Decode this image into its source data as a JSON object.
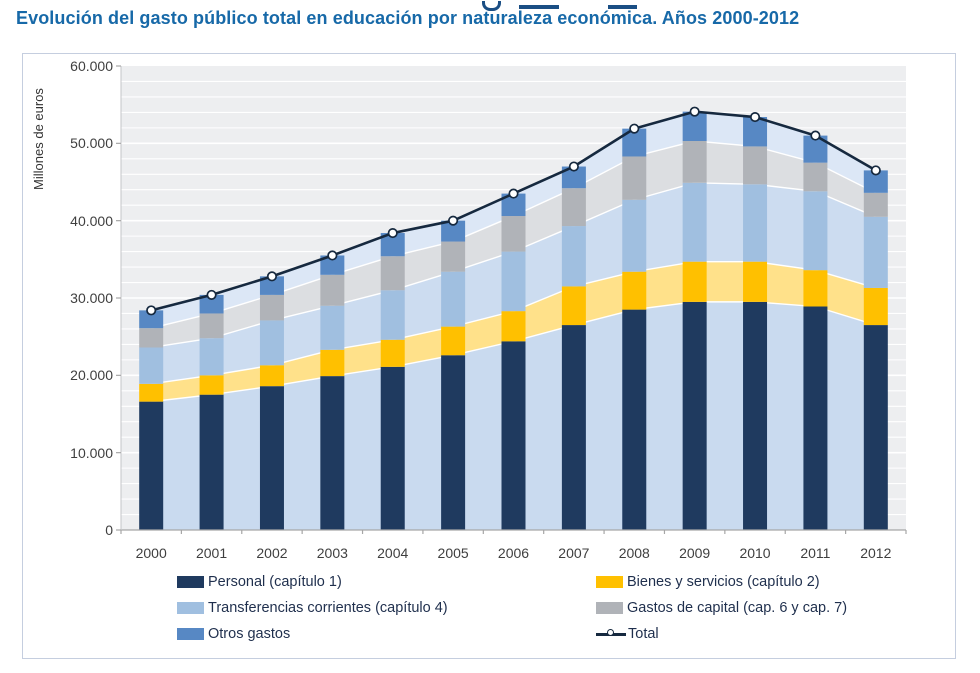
{
  "page": {
    "title": "Evolución del gasto público total en educación por naturaleza económica. Años 2000-2012",
    "title_color": "#1769A8"
  },
  "chart_data": {
    "type": "bar",
    "subtype": "stacked-columns-with-area-bands-and-total-line",
    "title": "Evolución del gasto público total en educación por naturaleza económica. Años 2000-2012",
    "xlabel": "",
    "ylabel": "Millones de euros",
    "ylim": [
      0,
      60000
    ],
    "y_tick_step": 10000,
    "y_minor_step": 2000,
    "y_tick_labels": [
      "0",
      "10.000",
      "20.000",
      "30.000",
      "40.000",
      "50.000",
      "60.000"
    ],
    "grid": "horizontal-white-on-gray",
    "legend_position": "bottom-two-columns",
    "categories": [
      "2000",
      "2001",
      "2002",
      "2003",
      "2004",
      "2005",
      "2006",
      "2007",
      "2008",
      "2009",
      "2010",
      "2011",
      "2012"
    ],
    "series": [
      {
        "name": "Personal (capítulo 1)",
        "bar_color": "#1F3A5F",
        "area_color": "#C9DAEF",
        "values": [
          16600,
          17500,
          18600,
          19900,
          21100,
          22600,
          24400,
          26500,
          28500,
          29500,
          29500,
          28900,
          26500
        ]
      },
      {
        "name": "Bienes y servicios (capítulo 2)",
        "bar_color": "#FFC000",
        "area_color": "#FFE18A",
        "values": [
          2300,
          2500,
          2700,
          3400,
          3500,
          3700,
          3900,
          5000,
          4900,
          5200,
          5200,
          4700,
          4800
        ]
      },
      {
        "name": "Transferencias corrientes (capítulo 4)",
        "bar_color": "#A0BFE0",
        "area_color": "#CCDCF0",
        "values": [
          4700,
          4800,
          5800,
          5700,
          6400,
          7100,
          7700,
          7800,
          9300,
          10200,
          10000,
          10200,
          9200
        ]
      },
      {
        "name": "Gastos de capital (cap. 6 y cap. 7)",
        "bar_color": "#B0B3B8",
        "area_color": "#DCDEE1",
        "values": [
          2500,
          3200,
          3300,
          4000,
          4400,
          3900,
          4600,
          4900,
          5600,
          5400,
          4900,
          3700,
          3100
        ]
      },
      {
        "name": "Otros gastos",
        "bar_color": "#5788C4",
        "area_color": "#DCE7F6",
        "values": [
          2300,
          2400,
          2400,
          2500,
          3000,
          2700,
          2900,
          2800,
          3600,
          3800,
          3800,
          3500,
          2900
        ]
      }
    ],
    "total": {
      "name": "Total",
      "line_color": "#16293F",
      "values": [
        28400,
        30400,
        32800,
        35500,
        38400,
        40000,
        43500,
        47000,
        51900,
        54100,
        53400,
        51000,
        46500
      ]
    },
    "colors": {
      "plot_background": "#EDEEF0",
      "gridline": "#FFFFFF",
      "axis_line": "#A6A6A6",
      "tick_text": "#3F3F3F",
      "legend_text": "#1F2F4D"
    }
  }
}
